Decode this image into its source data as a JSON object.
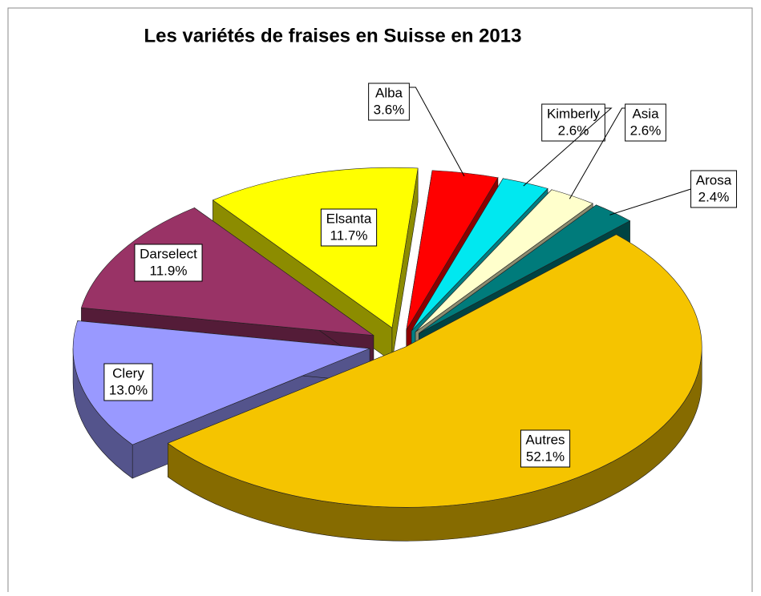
{
  "chart_data": {
    "type": "pie3d",
    "title": "Les variétés de fraises en Suisse en 2013",
    "categories": [
      "Alba",
      "Kimberly",
      "Asia",
      "Arosa",
      "Autres",
      "Clery",
      "Darselect",
      "Elsanta"
    ],
    "values": [
      3.6,
      2.6,
      2.6,
      2.4,
      52.1,
      13.0,
      11.9,
      11.7
    ],
    "value_labels": [
      "3.6%",
      "2.6%",
      "2.6%",
      "2.4%",
      "52.1%",
      "13.0%",
      "11.9%",
      "11.7%"
    ],
    "colors": [
      "#ff0000",
      "#00e8f0",
      "#ffffcc",
      "#007b7b",
      "#f5c400",
      "#9999ff",
      "#993366",
      "#ffff00"
    ]
  }
}
